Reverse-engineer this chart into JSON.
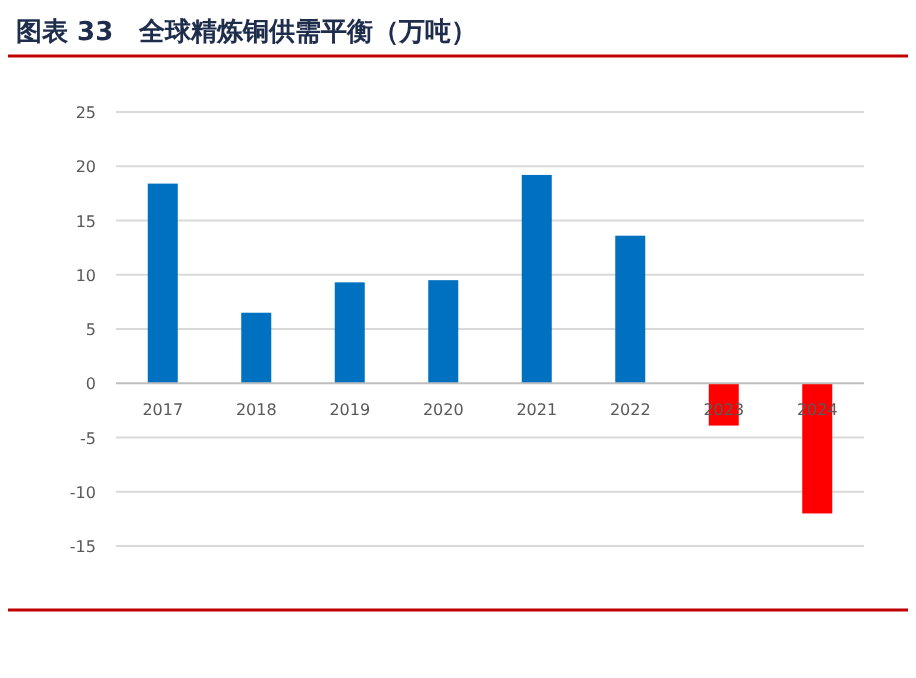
{
  "chart_data": {
    "type": "bar",
    "title": "图表 33　全球精炼铜供需平衡（万吨）",
    "categories": [
      "2017",
      "2018",
      "2019",
      "2020",
      "2021",
      "2022",
      "2023",
      "2024"
    ],
    "values": [
      18.4,
      6.5,
      9.3,
      9.5,
      19.2,
      13.6,
      -3.9,
      -12.0
    ],
    "colors": [
      "#0070c0",
      "#0070c0",
      "#0070c0",
      "#0070c0",
      "#0070c0",
      "#0070c0",
      "#ff0000",
      "#ff0000"
    ],
    "ylim": [
      -15,
      25
    ],
    "yticks": [
      -15,
      -10,
      -5,
      0,
      5,
      10,
      15,
      20,
      25
    ],
    "grid": "y"
  }
}
